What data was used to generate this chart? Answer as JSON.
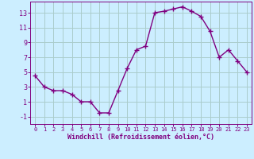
{
  "x": [
    0,
    1,
    2,
    3,
    4,
    5,
    6,
    7,
    8,
    9,
    10,
    11,
    12,
    13,
    14,
    15,
    16,
    17,
    18,
    19,
    20,
    21,
    22,
    23
  ],
  "y": [
    4.5,
    3.0,
    2.5,
    2.5,
    2.0,
    1.0,
    1.0,
    -0.5,
    -0.5,
    2.5,
    5.5,
    8.0,
    8.5,
    13.0,
    13.2,
    13.5,
    13.8,
    13.2,
    12.5,
    10.5,
    7.0,
    8.0,
    6.5,
    5.0
  ],
  "line_color": "#800080",
  "bg_color": "#cceeff",
  "grid_color": "#aacccc",
  "xlabel": "Windchill (Refroidissement éolien,°C)",
  "xlabel_color": "#800080",
  "tick_color": "#800080",
  "ylim": [
    -2,
    14.5
  ],
  "xlim": [
    -0.5,
    23.5
  ],
  "yticks": [
    -1,
    1,
    3,
    5,
    7,
    9,
    11,
    13
  ],
  "xticks": [
    0,
    1,
    2,
    3,
    4,
    5,
    6,
    7,
    8,
    9,
    10,
    11,
    12,
    13,
    14,
    15,
    16,
    17,
    18,
    19,
    20,
    21,
    22,
    23
  ]
}
